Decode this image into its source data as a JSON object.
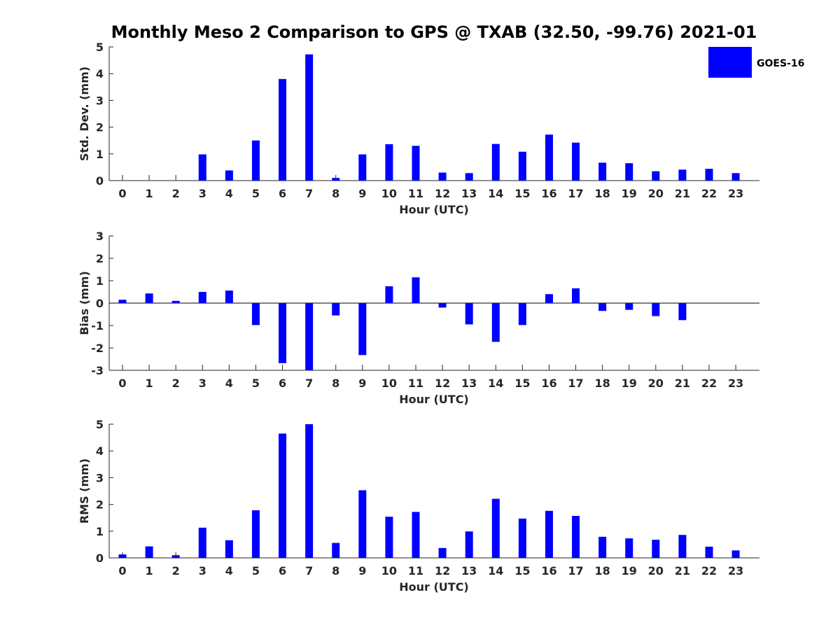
{
  "title": "Monthly Meso 2 Comparison to GPS @ TXAB (32.50, -99.76) 2021-01",
  "legend": {
    "label": "GOES-16",
    "color": "#0000ff"
  },
  "chart_data": [
    {
      "type": "bar",
      "xlabel": "Hour (UTC)",
      "ylabel": "Std. Dev. (mm)",
      "ylim": [
        0,
        5
      ],
      "yticks": [
        0,
        1,
        2,
        3,
        4,
        5
      ],
      "categories": [
        0,
        1,
        2,
        3,
        4,
        5,
        6,
        7,
        8,
        9,
        10,
        11,
        12,
        13,
        14,
        15,
        16,
        17,
        18,
        19,
        20,
        21,
        22,
        23
      ],
      "series": [
        {
          "name": "GOES-16",
          "values": [
            0,
            0,
            0,
            0.98,
            0.38,
            1.5,
            3.8,
            4.72,
            0.1,
            0.98,
            1.36,
            1.3,
            0.3,
            0.28,
            1.37,
            1.08,
            1.72,
            1.42,
            0.67,
            0.65,
            0.35,
            0.41,
            0.44,
            0.28
          ]
        }
      ]
    },
    {
      "type": "bar",
      "xlabel": "Hour (UTC)",
      "ylabel": "Bias (mm)",
      "ylim": [
        -3,
        3
      ],
      "yticks": [
        -3,
        -2,
        -1,
        0,
        1,
        2,
        3
      ],
      "categories": [
        0,
        1,
        2,
        3,
        4,
        5,
        6,
        7,
        8,
        9,
        10,
        11,
        12,
        13,
        14,
        15,
        16,
        17,
        18,
        19,
        20,
        21,
        22,
        23
      ],
      "series": [
        {
          "name": "GOES-16",
          "values": [
            0.15,
            0.43,
            0.1,
            0.5,
            0.56,
            -0.98,
            -2.68,
            -3.0,
            -0.55,
            -2.32,
            0.75,
            1.15,
            -0.2,
            -0.95,
            -1.73,
            -0.98,
            0.4,
            0.66,
            -0.35,
            -0.3,
            -0.58,
            -0.76,
            0,
            0
          ]
        }
      ]
    },
    {
      "type": "bar",
      "xlabel": "Hour (UTC)",
      "ylabel": "RMS (mm)",
      "ylim": [
        0,
        5
      ],
      "yticks": [
        0,
        1,
        2,
        3,
        4,
        5
      ],
      "categories": [
        0,
        1,
        2,
        3,
        4,
        5,
        6,
        7,
        8,
        9,
        10,
        11,
        12,
        13,
        14,
        15,
        16,
        17,
        18,
        19,
        20,
        21,
        22,
        23
      ],
      "series": [
        {
          "name": "GOES-16",
          "values": [
            0.13,
            0.43,
            0.1,
            1.13,
            0.66,
            1.78,
            4.65,
            5.0,
            0.56,
            2.53,
            1.54,
            1.72,
            0.37,
            0.99,
            2.21,
            1.47,
            1.76,
            1.57,
            0.79,
            0.73,
            0.68,
            0.86,
            0.42,
            0.28
          ]
        }
      ]
    }
  ]
}
